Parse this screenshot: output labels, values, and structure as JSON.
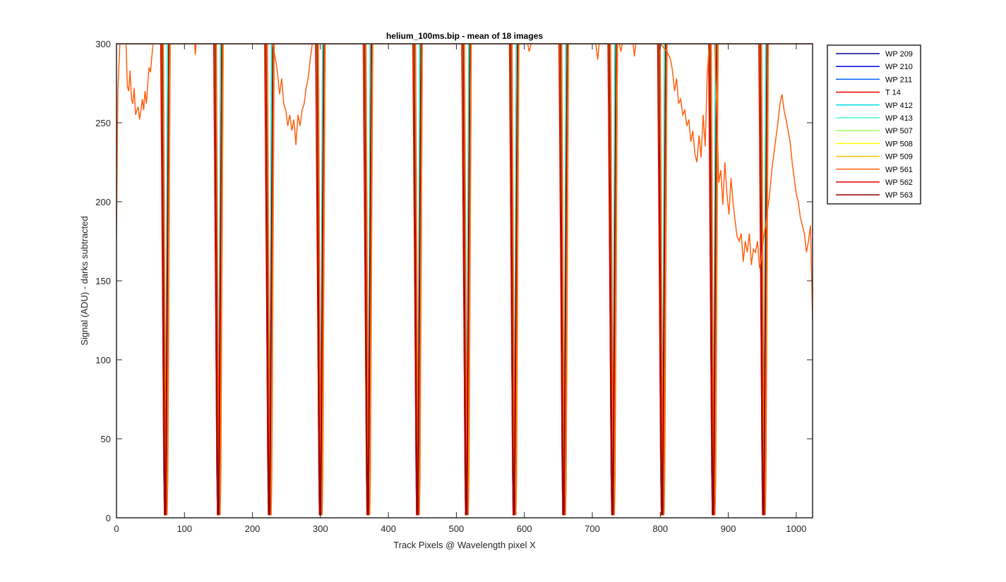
{
  "chart_data": {
    "type": "line",
    "title": "helium_100ms.bip - mean of 18 images",
    "xlabel": "Track Pixels @ Wavelength pixel X",
    "ylabel": "Signal (ADU) - darks subtracted",
    "xlim": [
      0,
      1024
    ],
    "ylim": [
      0,
      300
    ],
    "xticks": [
      0,
      100,
      200,
      300,
      400,
      500,
      600,
      700,
      800,
      900,
      1000
    ],
    "yticks": [
      0,
      50,
      100,
      150,
      200,
      250,
      300
    ],
    "grid": false,
    "legend_position": "outside-top-right",
    "dip_centers": [
      72,
      150,
      225,
      300,
      370,
      443,
      515,
      585,
      658,
      730,
      803,
      878,
      952
    ],
    "series": [
      {
        "name": "WP 209",
        "color": "#00008f",
        "dip_offset": -1,
        "dip_width": 5
      },
      {
        "name": "WP 210",
        "color": "#0000ef",
        "dip_offset": 0,
        "dip_width": 5
      },
      {
        "name": "WP 211",
        "color": "#0060ff",
        "dip_offset": 1,
        "dip_width": 5
      },
      {
        "name": "T 14",
        "color": "#ff0000",
        "dip_offset": 0,
        "dip_width": 6
      },
      {
        "name": "WP 412",
        "color": "#00e0e0",
        "dip_offset": -1,
        "dip_width": 4
      },
      {
        "name": "WP 413",
        "color": "#40ffbf",
        "dip_offset": 0,
        "dip_width": 4
      },
      {
        "name": "WP 507",
        "color": "#9fff60",
        "dip_offset": 1,
        "dip_width": 5
      },
      {
        "name": "WP 508",
        "color": "#ffff00",
        "dip_offset": 0,
        "dip_width": 6
      },
      {
        "name": "WP 509",
        "color": "#ffbf00",
        "dip_offset": 1,
        "dip_width": 6
      },
      {
        "name": "WP 561",
        "color": "#ff6010",
        "dip_offset": 2,
        "dip_width": 5
      },
      {
        "name": "WP 562",
        "color": "#df0000",
        "dip_offset": -1,
        "dip_width": 6
      },
      {
        "name": "WP 563",
        "color": "#8f0000",
        "dip_offset": 0,
        "dip_width": 5
      }
    ],
    "noisy_series": {
      "name": "WP 561",
      "color": "#ff6010",
      "points": [
        [
          0,
          177
        ],
        [
          2,
          270
        ],
        [
          5,
          300
        ],
        [
          10,
          300
        ],
        [
          14,
          300
        ],
        [
          16,
          273
        ],
        [
          18,
          270
        ],
        [
          20,
          283
        ],
        [
          22,
          265
        ],
        [
          24,
          262
        ],
        [
          26,
          272
        ],
        [
          28,
          255
        ],
        [
          30,
          258
        ],
        [
          32,
          260
        ],
        [
          34,
          252
        ],
        [
          36,
          258
        ],
        [
          38,
          265
        ],
        [
          40,
          258
        ],
        [
          42,
          270
        ],
        [
          44,
          262
        ],
        [
          46,
          275
        ],
        [
          48,
          285
        ],
        [
          50,
          282
        ],
        [
          52,
          292
        ],
        [
          54,
          300
        ],
        [
          70,
          300
        ],
        [
          80,
          300
        ],
        [
          115,
          300
        ],
        [
          116,
          293
        ],
        [
          117,
          300
        ],
        [
          145,
          300
        ],
        [
          220,
          300
        ],
        [
          230,
          300
        ],
        [
          236,
          285
        ],
        [
          240,
          268
        ],
        [
          243,
          278
        ],
        [
          246,
          262
        ],
        [
          249,
          258
        ],
        [
          252,
          248
        ],
        [
          255,
          255
        ],
        [
          258,
          245
        ],
        [
          261,
          252
        ],
        [
          264,
          236
        ],
        [
          267,
          255
        ],
        [
          270,
          248
        ],
        [
          273,
          258
        ],
        [
          276,
          262
        ],
        [
          279,
          272
        ],
        [
          282,
          278
        ],
        [
          285,
          290
        ],
        [
          288,
          300
        ],
        [
          300,
          300
        ],
        [
          600,
          300
        ],
        [
          605,
          300
        ],
        [
          607,
          295
        ],
        [
          610,
          300
        ],
        [
          700,
          300
        ],
        [
          705,
          300
        ],
        [
          708,
          290
        ],
        [
          710,
          300
        ],
        [
          730,
          300
        ],
        [
          740,
          300
        ],
        [
          742,
          295
        ],
        [
          744,
          300
        ],
        [
          760,
          300
        ],
        [
          762,
          292
        ],
        [
          764,
          300
        ],
        [
          800,
          300
        ],
        [
          810,
          295
        ],
        [
          815,
          290
        ],
        [
          818,
          283
        ],
        [
          821,
          270
        ],
        [
          824,
          278
        ],
        [
          827,
          262
        ],
        [
          830,
          265
        ],
        [
          833,
          255
        ],
        [
          836,
          258
        ],
        [
          839,
          248
        ],
        [
          842,
          252
        ],
        [
          845,
          238
        ],
        [
          848,
          245
        ],
        [
          851,
          230
        ],
        [
          854,
          225
        ],
        [
          857,
          242
        ],
        [
          860,
          228
        ],
        [
          863,
          255
        ],
        [
          866,
          235
        ],
        [
          869,
          280
        ],
        [
          872,
          300
        ],
        [
          880,
          300
        ],
        [
          883,
          260
        ],
        [
          886,
          212
        ],
        [
          889,
          220
        ],
        [
          892,
          198
        ],
        [
          895,
          225
        ],
        [
          898,
          205
        ],
        [
          901,
          192
        ],
        [
          904,
          215
        ],
        [
          907,
          200
        ],
        [
          910,
          188
        ],
        [
          913,
          178
        ],
        [
          916,
          175
        ],
        [
          919,
          180
        ],
        [
          922,
          162
        ],
        [
          925,
          175
        ],
        [
          928,
          168
        ],
        [
          931,
          180
        ],
        [
          934,
          160
        ],
        [
          937,
          170
        ],
        [
          940,
          168
        ],
        [
          943,
          175
        ],
        [
          946,
          158
        ],
        [
          949,
          165
        ],
        [
          952,
          178
        ],
        [
          955,
          185
        ],
        [
          958,
          195
        ],
        [
          961,
          205
        ],
        [
          964,
          220
        ],
        [
          967,
          230
        ],
        [
          970,
          240
        ],
        [
          973,
          250
        ],
        [
          976,
          262
        ],
        [
          979,
          268
        ],
        [
          982,
          258
        ],
        [
          985,
          252
        ],
        [
          988,
          245
        ],
        [
          991,
          238
        ],
        [
          994,
          225
        ],
        [
          997,
          215
        ],
        [
          1000,
          205
        ],
        [
          1003,
          200
        ],
        [
          1006,
          190
        ],
        [
          1009,
          185
        ],
        [
          1012,
          180
        ],
        [
          1015,
          168
        ],
        [
          1018,
          175
        ],
        [
          1021,
          185
        ],
        [
          1024,
          125
        ]
      ]
    }
  }
}
